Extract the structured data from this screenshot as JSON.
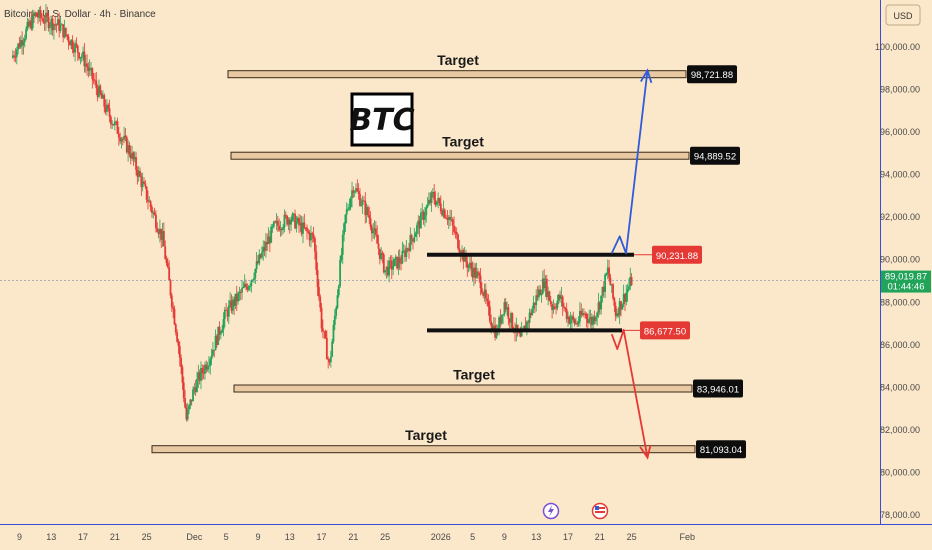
{
  "header": {
    "title": "Bitcoin / U.S. Dollar · 4h · Binance",
    "currency": "USD"
  },
  "badge": {
    "text": "BTC"
  },
  "colors": {
    "bg": "#fbe7c9",
    "up": "#22a35a",
    "down": "#e53935",
    "up_arrow": "#2f5bdc",
    "down_arrow": "#e53935",
    "label_dark": "#0d0d0d",
    "label_red": "#e53935",
    "axis_line": "#3b4bd6"
  },
  "chart_data": {
    "type": "candlestick",
    "interval": "4h",
    "yticks": [
      78000,
      80000,
      82000,
      84000,
      86000,
      88000,
      90000,
      92000,
      94000,
      96000,
      98000,
      100000
    ],
    "ytick_labels": [
      "78,000.00",
      "80,000.00",
      "82,000.00",
      "84,000.00",
      "86,000.00",
      "88,000.00",
      "90,000.00",
      "92,000.00",
      "94,000.00",
      "96,000.00",
      "98,000.00",
      "100,000.00"
    ],
    "xticks": [
      "9",
      "13",
      "17",
      "21",
      "25",
      "Dec",
      "5",
      "9",
      "13",
      "17",
      "21",
      "25",
      "2026",
      "5",
      "9",
      "13",
      "17",
      "21",
      "25",
      "Feb"
    ],
    "current_price": {
      "value": 89019.87,
      "label": "89,019.87",
      "countdown": "01:44:46"
    },
    "levels": [
      {
        "value": 98721.88,
        "label": "98,721.88",
        "type": "target",
        "target_text": "Target"
      },
      {
        "value": 94889.52,
        "label": "94,889.52",
        "type": "target",
        "target_text": "Target"
      },
      {
        "value": 90231.88,
        "label": "90,231.88",
        "type": "resistance"
      },
      {
        "value": 86677.5,
        "label": "86,677.50",
        "type": "support"
      },
      {
        "value": 83946.01,
        "label": "83,946.01",
        "type": "target",
        "target_text": "Target"
      },
      {
        "value": 81093.04,
        "label": "81,093.04",
        "type": "target",
        "target_text": "Target"
      }
    ],
    "path_anchors": [
      [
        0,
        99500
      ],
      [
        3,
        101500
      ],
      [
        6,
        101000
      ],
      [
        9,
        99500
      ],
      [
        12,
        97000
      ],
      [
        15,
        95000
      ],
      [
        19,
        91000
      ],
      [
        21,
        86000
      ],
      [
        22,
        82500
      ],
      [
        23,
        84000
      ],
      [
        25,
        85500
      ],
      [
        27,
        87500
      ],
      [
        30,
        89000
      ],
      [
        33,
        91500
      ],
      [
        35,
        92000
      ],
      [
        38,
        91000
      ],
      [
        39,
        87000
      ],
      [
        40,
        85000
      ],
      [
        41,
        88500
      ],
      [
        42,
        92000
      ],
      [
        43,
        93500
      ],
      [
        45,
        92000
      ],
      [
        47,
        89500
      ],
      [
        49,
        90000
      ],
      [
        51,
        91500
      ],
      [
        53,
        93000
      ],
      [
        55,
        92000
      ],
      [
        57,
        90000
      ],
      [
        59,
        89000
      ],
      [
        60,
        87500
      ],
      [
        61,
        86500
      ],
      [
        62,
        88000
      ],
      [
        63,
        87000
      ],
      [
        64,
        86200
      ],
      [
        65,
        87200
      ],
      [
        66,
        88200
      ],
      [
        67,
        89000
      ],
      [
        68,
        87800
      ],
      [
        69,
        88200
      ],
      [
        70,
        87300
      ],
      [
        71,
        87000
      ],
      [
        72,
        87500
      ],
      [
        73,
        87100
      ],
      [
        74,
        88000
      ],
      [
        75,
        89500
      ],
      [
        76,
        87500
      ],
      [
        77,
        88200
      ],
      [
        78,
        89019
      ]
    ],
    "projection_up": [
      [
        75.5,
        90300
      ],
      [
        76.5,
        91100
      ],
      [
        77.3,
        90300
      ],
      [
        80.0,
        98900
      ]
    ],
    "projection_down": [
      [
        75.5,
        86500
      ],
      [
        76.2,
        85800
      ],
      [
        77.0,
        86700
      ],
      [
        80.0,
        80700
      ]
    ]
  }
}
